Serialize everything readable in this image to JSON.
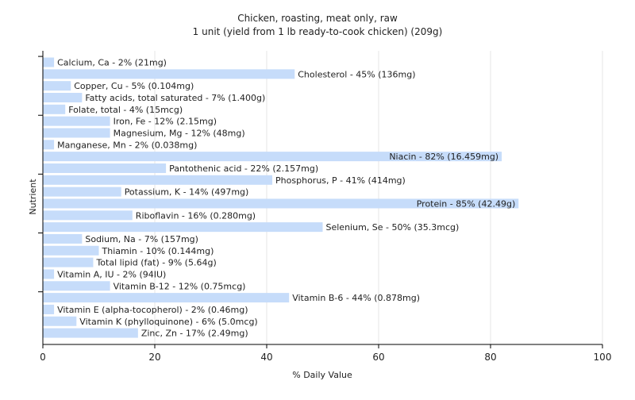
{
  "chart_data": {
    "type": "bar",
    "orientation": "horizontal",
    "title": "Chicken, roasting, meat only, raw",
    "subtitle": "1 unit (yield from 1 lb ready-to-cook chicken) (209g)",
    "xlabel": "% Daily Value",
    "ylabel": "Nutrient",
    "xlim": [
      0,
      100
    ],
    "xticks": [
      "0",
      "20",
      "40",
      "60",
      "80",
      "100"
    ],
    "grid": true,
    "bar_color": "#c6dcfa",
    "categories": [
      "Calcium, Ca",
      "Cholesterol",
      "Copper, Cu",
      "Fatty acids, total saturated",
      "Folate, total",
      "Iron, Fe",
      "Magnesium, Mg",
      "Manganese, Mn",
      "Niacin",
      "Pantothenic acid",
      "Phosphorus, P",
      "Potassium, K",
      "Protein",
      "Riboflavin",
      "Selenium, Se",
      "Sodium, Na",
      "Thiamin",
      "Total lipid (fat)",
      "Vitamin A, IU",
      "Vitamin B-12",
      "Vitamin B-6",
      "Vitamin E (alpha-tocopherol)",
      "Vitamin K (phylloquinone)",
      "Zinc, Zn"
    ],
    "values": [
      2,
      45,
      5,
      7,
      4,
      12,
      12,
      2,
      82,
      22,
      41,
      14,
      85,
      16,
      50,
      7,
      10,
      9,
      2,
      12,
      44,
      2,
      6,
      17
    ],
    "labels": [
      "Calcium, Ca - 2% (21mg)",
      "Cholesterol - 45% (136mg)",
      "Copper, Cu - 5% (0.104mg)",
      "Fatty acids, total saturated - 7% (1.400g)",
      "Folate, total - 4% (15mcg)",
      "Iron, Fe - 12% (2.15mg)",
      "Magnesium, Mg - 12% (48mg)",
      "Manganese, Mn - 2% (0.038mg)",
      "Niacin - 82% (16.459mg)",
      "Pantothenic acid - 22% (2.157mg)",
      "Phosphorus, P - 41% (414mg)",
      "Potassium, K - 14% (497mg)",
      "Protein - 85% (42.49g)",
      "Riboflavin - 16% (0.280mg)",
      "Selenium, Se - 50% (35.3mcg)",
      "Sodium, Na - 7% (157mg)",
      "Thiamin - 10% (0.144mg)",
      "Total lipid (fat) - 9% (5.64g)",
      "Vitamin A, IU - 2% (94IU)",
      "Vitamin B-12 - 12% (0.75mcg)",
      "Vitamin B-6 - 44% (0.878mg)",
      "Vitamin E (alpha-tocopherol) - 2% (0.46mg)",
      "Vitamin K (phylloquinone) - 6% (5.0mcg)",
      "Zinc, Zn - 17% (2.49mg)"
    ]
  }
}
